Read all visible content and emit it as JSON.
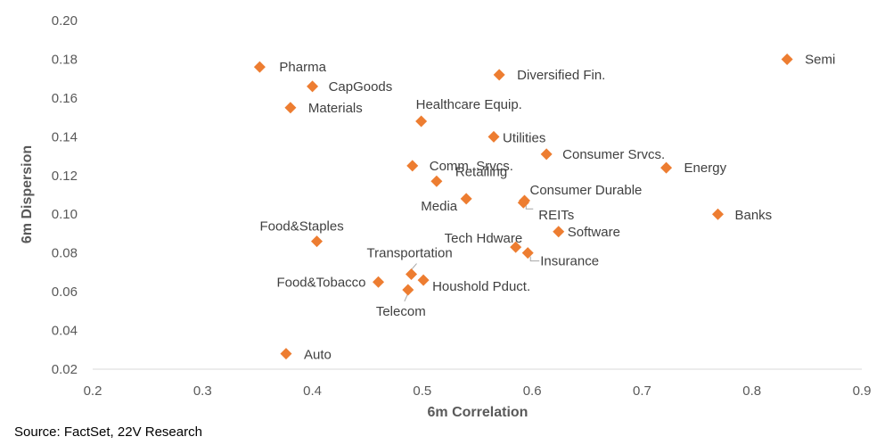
{
  "chart_data": {
    "type": "scatter",
    "xlabel": "6m Correlation",
    "ylabel": "6m Dispersion",
    "xlim": [
      0.2,
      0.9
    ],
    "ylim": [
      0.02,
      0.2
    ],
    "xticks": [
      "0.2",
      "0.3",
      "0.4",
      "0.5",
      "0.6",
      "0.7",
      "0.8",
      "0.9"
    ],
    "yticks": [
      "0.20",
      "0.18",
      "0.16",
      "0.14",
      "0.12",
      "0.10",
      "0.08",
      "0.06",
      "0.04",
      "0.02"
    ],
    "grid": false,
    "marker_color": "#ED7D31",
    "points": [
      {
        "label": "Pharma",
        "x": 0.352,
        "y": 0.176
      },
      {
        "label": "CapGoods",
        "x": 0.4,
        "y": 0.166
      },
      {
        "label": "Materials",
        "x": 0.38,
        "y": 0.155
      },
      {
        "label": "Diversified Fin.",
        "x": 0.57,
        "y": 0.172
      },
      {
        "label": "Semi",
        "x": 0.832,
        "y": 0.18
      },
      {
        "label": "Healthcare Equip.",
        "x": 0.499,
        "y": 0.148
      },
      {
        "label": "Utilities",
        "x": 0.565,
        "y": 0.14
      },
      {
        "label": "Consumer Srvcs.",
        "x": 0.613,
        "y": 0.131
      },
      {
        "label": "Energy",
        "x": 0.722,
        "y": 0.124
      },
      {
        "label": "Comm. Srvcs.",
        "x": 0.491,
        "y": 0.125
      },
      {
        "label": "Retailing",
        "x": 0.513,
        "y": 0.117
      },
      {
        "label": "Media",
        "x": 0.54,
        "y": 0.108
      },
      {
        "label": "Consumer Durable",
        "x": 0.593,
        "y": 0.107
      },
      {
        "label": "REITs",
        "x": 0.592,
        "y": 0.106
      },
      {
        "label": "Banks",
        "x": 0.769,
        "y": 0.1
      },
      {
        "label": "Food&Staples",
        "x": 0.404,
        "y": 0.086
      },
      {
        "label": "Software",
        "x": 0.624,
        "y": 0.091
      },
      {
        "label": "Tech Hdware",
        "x": 0.585,
        "y": 0.083
      },
      {
        "label": "Insurance",
        "x": 0.596,
        "y": 0.08
      },
      {
        "label": "Transportation",
        "x": 0.49,
        "y": 0.069
      },
      {
        "label": "Food&Tobacco",
        "x": 0.46,
        "y": 0.065
      },
      {
        "label": "Houshold Pduct.",
        "x": 0.501,
        "y": 0.066
      },
      {
        "label": "Telecom",
        "x": 0.487,
        "y": 0.061
      },
      {
        "label": "Auto",
        "x": 0.376,
        "y": 0.028
      }
    ]
  },
  "source": "Source: FactSet, 22V Research"
}
